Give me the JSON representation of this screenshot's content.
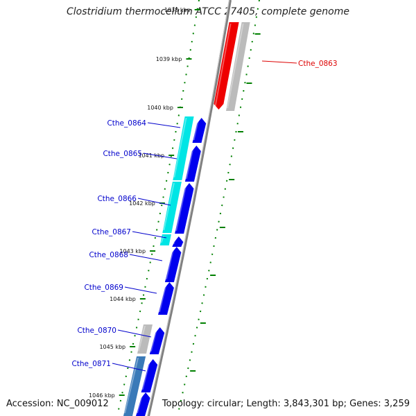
{
  "title": "Clostridium thermocellum ATCC 27405, complete genome",
  "accession": "Accession: NC_009012",
  "topology": "Topology: circular; Length: 3,843,301 bp; Genes: 3,259",
  "colors": {
    "axis": "#808080",
    "ticks": "#008000",
    "label_forward": "#0000cc",
    "label_reverse": "#dd0000",
    "gene_blue": "#0000ee",
    "gene_cyan": "#00e5e5",
    "gene_red": "#ee0000",
    "gene_gray": "#bbbbbb",
    "gene_steel": "#3a7ab8"
  },
  "kbp_ticks": [
    "1038 kbp",
    "1039 kbp",
    "1040 kbp",
    "1041 kbp",
    "1042 kbp",
    "1043 kbp",
    "1044 kbp",
    "1045 kbp",
    "1046 kbp"
  ],
  "gene_labels": [
    {
      "name": "Cthe_0863",
      "strand": "reverse"
    },
    {
      "name": "Cthe_0864",
      "strand": "forward"
    },
    {
      "name": "Cthe_0865",
      "strand": "forward"
    },
    {
      "name": "Cthe_0866",
      "strand": "forward"
    },
    {
      "name": "Cthe_0867",
      "strand": "forward"
    },
    {
      "name": "Cthe_0868",
      "strand": "forward"
    },
    {
      "name": "Cthe_0869",
      "strand": "forward"
    },
    {
      "name": "Cthe_0870",
      "strand": "forward"
    },
    {
      "name": "Cthe_0871",
      "strand": "forward"
    }
  ]
}
